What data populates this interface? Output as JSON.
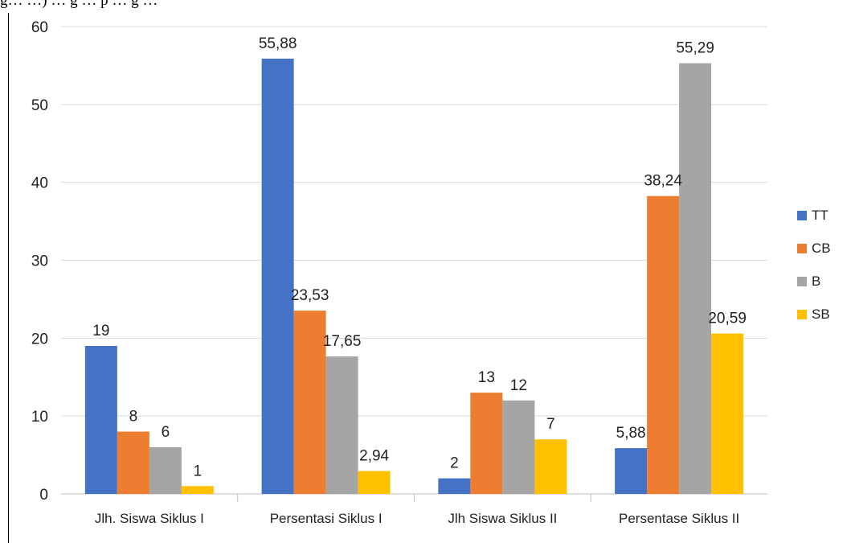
{
  "header_text": "g…                                   …) … g … p … g …",
  "chart_data": {
    "type": "bar",
    "categories": [
      "Jlh. Siswa Siklus I",
      "Persentasi Siklus I",
      "Jlh Siswa Siklus II",
      "Persentase Siklus II"
    ],
    "series": [
      {
        "name": "TT",
        "color": "#4472c4",
        "values": [
          19,
          55.88,
          2,
          5.88
        ],
        "labels": [
          "19",
          "55,88",
          "2",
          "5,88"
        ]
      },
      {
        "name": "CB",
        "color": "#ed7d31",
        "values": [
          8,
          23.53,
          13,
          38.24
        ],
        "labels": [
          "8",
          "23,53",
          "13",
          "38,24"
        ]
      },
      {
        "name": "B",
        "color": "#a5a5a5",
        "values": [
          6,
          17.65,
          12,
          55.29
        ],
        "labels": [
          "6",
          "17,65",
          "12",
          "55,29"
        ]
      },
      {
        "name": "SB",
        "color": "#ffc000",
        "values": [
          1,
          2.94,
          7,
          20.59
        ],
        "labels": [
          "1",
          "2,94",
          "7",
          "20,59"
        ]
      }
    ],
    "ylim": [
      0,
      60
    ],
    "yticks": [
      0,
      10,
      20,
      30,
      40,
      50,
      60
    ],
    "grid": true,
    "legend": "right"
  }
}
